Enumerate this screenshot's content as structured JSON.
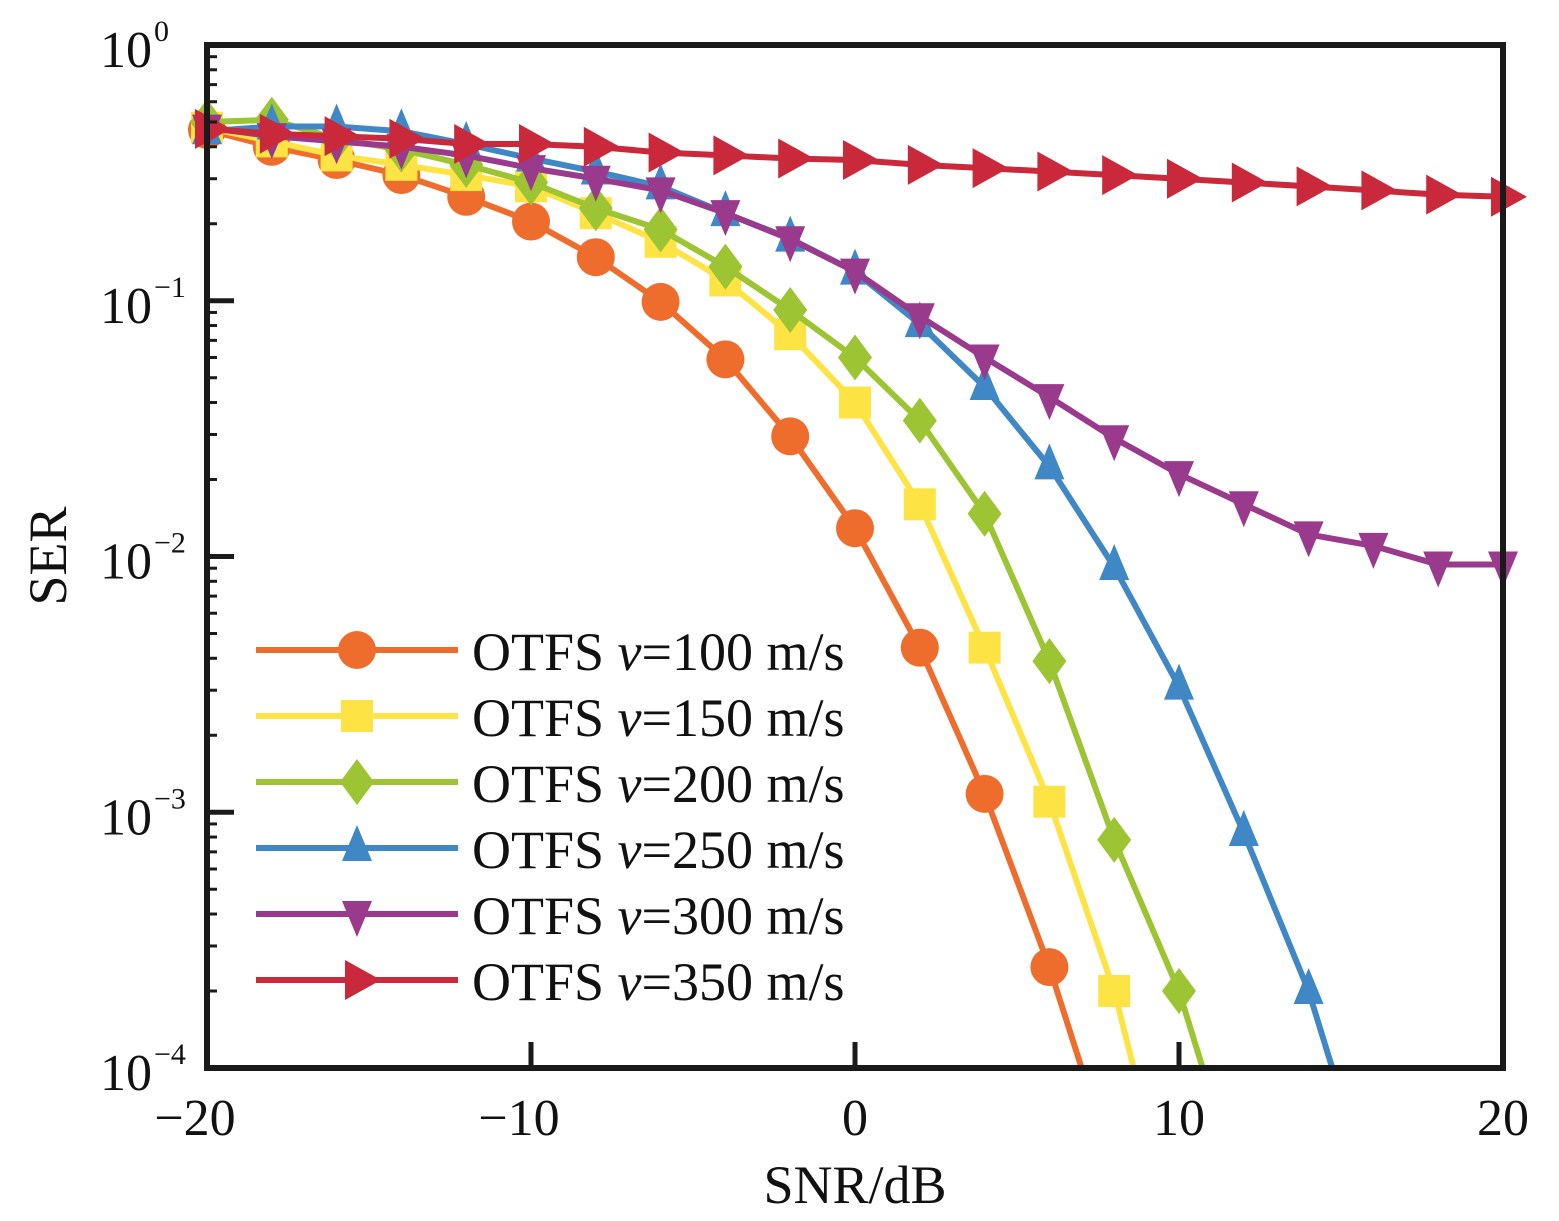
{
  "chart_data": {
    "type": "line",
    "title": "",
    "xlabel": "SNR/dB",
    "ylabel": "SER",
    "xlim": [
      -20,
      20
    ],
    "ylim": [
      0.0001,
      1
    ],
    "yscale": "log",
    "grid": false,
    "legend_position": "bottom-left",
    "x_ticks": [
      -20,
      -10,
      0,
      10,
      20
    ],
    "x_tick_labels": [
      "−20",
      "−10",
      "0",
      "10",
      "20"
    ],
    "y_ticks": [
      1,
      0.1,
      0.01,
      0.001,
      0.0001
    ],
    "y_tick_labels": [
      {
        "base": "10",
        "exp": "0"
      },
      {
        "base": "10",
        "exp": "−1"
      },
      {
        "base": "10",
        "exp": "−2"
      },
      {
        "base": "10",
        "exp": "−3"
      },
      {
        "base": "10",
        "exp": "−4"
      }
    ],
    "x": [
      -20,
      -18,
      -16,
      -14,
      -12,
      -10,
      -8,
      -6,
      -4,
      -2,
      0,
      2,
      4,
      6,
      8,
      10,
      12,
      14,
      16,
      18,
      20
    ],
    "series": [
      {
        "name": "OTFS v=100 m/s",
        "label_prefix": "OTFS ",
        "label_var": "v",
        "label_suffix": "=100 m/s",
        "color": "#EE6D2C",
        "marker": "circle",
        "values": [
          0.466,
          0.4,
          0.355,
          0.31,
          0.255,
          0.204,
          0.148,
          0.099,
          0.059,
          0.0295,
          0.0129,
          0.0044,
          0.00118,
          0.000248,
          4e-05,
          null,
          null,
          null,
          null,
          null,
          null
        ]
      },
      {
        "name": "OTFS v=150 m/s",
        "label_prefix": "OTFS ",
        "label_var": "v",
        "label_suffix": "=150 m/s",
        "color": "#FDE344",
        "marker": "square",
        "values": [
          0.475,
          0.42,
          0.37,
          0.34,
          0.31,
          0.28,
          0.22,
          0.17,
          0.12,
          0.074,
          0.04,
          0.016,
          0.0044,
          0.0011,
          0.0002,
          2e-05,
          null,
          null,
          null,
          null,
          null
        ]
      },
      {
        "name": "OTFS v=200 m/s",
        "label_prefix": "OTFS ",
        "label_var": "v",
        "label_suffix": "=200 m/s",
        "color": "#9DC432",
        "marker": "diamond",
        "values": [
          0.5,
          0.51,
          0.43,
          0.39,
          0.34,
          0.29,
          0.23,
          0.19,
          0.136,
          0.092,
          0.06,
          0.034,
          0.0147,
          0.0039,
          0.00078,
          0.0002,
          3e-05,
          null,
          null,
          null,
          null
        ]
      },
      {
        "name": "OTFS v=250 m/s",
        "label_prefix": "OTFS ",
        "label_var": "v",
        "label_suffix": "=250 m/s",
        "color": "#3F88C5",
        "marker": "triangle-up",
        "values": [
          0.46,
          0.48,
          0.48,
          0.46,
          0.41,
          0.36,
          0.32,
          0.28,
          0.22,
          0.175,
          0.13,
          0.081,
          0.046,
          0.0225,
          0.0091,
          0.0031,
          0.00083,
          0.0002,
          3e-05,
          null,
          null
        ]
      },
      {
        "name": "OTFS v=300 m/s",
        "label_prefix": "OTFS ",
        "label_var": "v",
        "label_suffix": "=300 m/s",
        "color": "#9A3A8C",
        "marker": "triangle-down",
        "values": [
          0.475,
          0.44,
          0.42,
          0.4,
          0.37,
          0.33,
          0.3,
          0.27,
          0.22,
          0.174,
          0.13,
          0.087,
          0.06,
          0.042,
          0.029,
          0.021,
          0.016,
          0.0122,
          0.011,
          0.0093,
          0.0093
        ]
      },
      {
        "name": "OTFS v=350 m/s",
        "label_prefix": "OTFS ",
        "label_var": "v",
        "label_suffix": "=350 m/s",
        "color": "#C9293A",
        "marker": "triangle-right",
        "values": [
          0.47,
          0.45,
          0.44,
          0.43,
          0.41,
          0.41,
          0.4,
          0.38,
          0.37,
          0.36,
          0.355,
          0.34,
          0.33,
          0.32,
          0.31,
          0.3,
          0.29,
          0.28,
          0.27,
          0.26,
          0.255
        ]
      }
    ]
  }
}
